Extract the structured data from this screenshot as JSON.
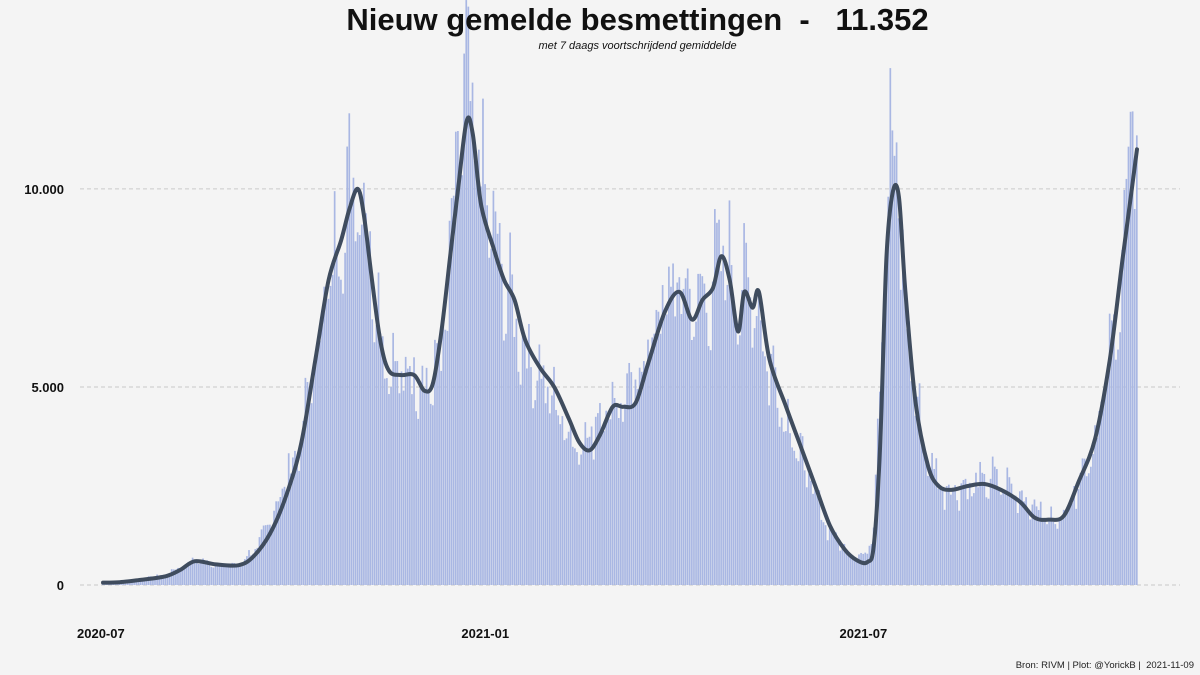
{
  "chart_data": {
    "type": "bar",
    "title": "Nieuw gemelde besmettingen  -   11.352",
    "subtitle": "met 7 daags voortschrijdend gemiddelde",
    "caption": "Bron: RIVM | Plot: @YorickB |  2021-11-09",
    "xlabel": "",
    "ylabel": "",
    "x_start": "2020-07-02",
    "x_end": "2021-11-09",
    "xlim": [
      "2020-06-21",
      "2021-11-20"
    ],
    "ylim": [
      0,
      12800
    ],
    "yticks": [
      {
        "value": 0,
        "label": "0"
      },
      {
        "value": 5000,
        "label": "5.000"
      },
      {
        "value": 10000,
        "label": "10.000"
      }
    ],
    "xticks": [
      {
        "value": "2020-07-01",
        "label": "2020-07"
      },
      {
        "value": "2021-01-01",
        "label": "2021-01"
      },
      {
        "value": "2021-07-01",
        "label": "2021-07"
      }
    ],
    "grid": "horizontal-dashed",
    "colors": {
      "bars": "#a9b7e3",
      "average_line": "#3f4c5e",
      "background": "#f4f4f4"
    },
    "series": [
      {
        "type": "bar",
        "name": "",
        "description": "daily reported infections (estimated, anchor points; daily values interpolated with noise)",
        "anchors": [
          [
            "2020-07-02",
            60
          ],
          [
            "2020-07-15",
            120
          ],
          [
            "2020-08-01",
            250
          ],
          [
            "2020-08-15",
            620
          ],
          [
            "2020-08-25",
            520
          ],
          [
            "2020-09-05",
            500
          ],
          [
            "2020-09-15",
            1000
          ],
          [
            "2020-09-25",
            2200
          ],
          [
            "2020-10-05",
            3600
          ],
          [
            "2020-10-12",
            5800
          ],
          [
            "2020-10-20",
            7900
          ],
          [
            "2020-10-28",
            9700
          ],
          [
            "2020-11-01",
            10100
          ],
          [
            "2020-11-05",
            9200
          ],
          [
            "2020-11-10",
            7100
          ],
          [
            "2020-11-15",
            5600
          ],
          [
            "2020-11-20",
            5100
          ],
          [
            "2020-11-30",
            5300
          ],
          [
            "2020-12-07",
            5000
          ],
          [
            "2020-12-12",
            6000
          ],
          [
            "2020-12-16",
            8300
          ],
          [
            "2020-12-20",
            11200
          ],
          [
            "2020-12-23",
            12200
          ],
          [
            "2020-12-27",
            11000
          ],
          [
            "2021-01-02",
            9300
          ],
          [
            "2021-01-10",
            7500
          ],
          [
            "2021-01-20",
            5800
          ],
          [
            "2021-01-28",
            5100
          ],
          [
            "2021-02-05",
            4300
          ],
          [
            "2021-02-12",
            3600
          ],
          [
            "2021-02-18",
            3500
          ],
          [
            "2021-02-25",
            4300
          ],
          [
            "2021-03-05",
            4600
          ],
          [
            "2021-03-12",
            4600
          ],
          [
            "2021-03-20",
            5900
          ],
          [
            "2021-03-28",
            7000
          ],
          [
            "2021-04-05",
            7400
          ],
          [
            "2021-04-12",
            6800
          ],
          [
            "2021-04-20",
            7400
          ],
          [
            "2021-04-25",
            8300
          ],
          [
            "2021-04-30",
            7500
          ],
          [
            "2021-05-05",
            7200
          ],
          [
            "2021-05-10",
            7300
          ],
          [
            "2021-05-15",
            5800
          ],
          [
            "2021-05-25",
            4200
          ],
          [
            "2021-06-05",
            2600
          ],
          [
            "2021-06-15",
            1300
          ],
          [
            "2021-06-25",
            750
          ],
          [
            "2021-07-02",
            700
          ],
          [
            "2021-07-06",
            1500
          ],
          [
            "2021-07-10",
            6500
          ],
          [
            "2021-07-14",
            10700
          ],
          [
            "2021-07-17",
            10200
          ],
          [
            "2021-07-22",
            6300
          ],
          [
            "2021-07-30",
            3400
          ],
          [
            "2021-08-08",
            2400
          ],
          [
            "2021-08-20",
            2400
          ],
          [
            "2021-09-01",
            2600
          ],
          [
            "2021-09-10",
            2400
          ],
          [
            "2021-09-20",
            2000
          ],
          [
            "2021-09-28",
            1600
          ],
          [
            "2021-10-05",
            1700
          ],
          [
            "2021-10-12",
            2600
          ],
          [
            "2021-10-20",
            3600
          ],
          [
            "2021-10-28",
            5800
          ],
          [
            "2021-11-03",
            8300
          ],
          [
            "2021-11-07",
            11500
          ],
          [
            "2021-11-09",
            11352
          ]
        ]
      },
      {
        "type": "line",
        "name": "",
        "description": "7-day moving average (estimated anchor points)",
        "points": [
          [
            "2020-07-02",
            60
          ],
          [
            "2020-07-10",
            70
          ],
          [
            "2020-07-20",
            130
          ],
          [
            "2020-08-01",
            220
          ],
          [
            "2020-08-08",
            380
          ],
          [
            "2020-08-15",
            600
          ],
          [
            "2020-08-25",
            520
          ],
          [
            "2020-09-05",
            500
          ],
          [
            "2020-09-12",
            720
          ],
          [
            "2020-09-20",
            1300
          ],
          [
            "2020-09-28",
            2300
          ],
          [
            "2020-10-05",
            3600
          ],
          [
            "2020-10-12",
            5800
          ],
          [
            "2020-10-18",
            7700
          ],
          [
            "2020-10-24",
            8700
          ],
          [
            "2020-10-28",
            9500
          ],
          [
            "2020-11-01",
            10000
          ],
          [
            "2020-11-04",
            9300
          ],
          [
            "2020-11-08",
            7600
          ],
          [
            "2020-11-12",
            6100
          ],
          [
            "2020-11-16",
            5400
          ],
          [
            "2020-11-22",
            5300
          ],
          [
            "2020-11-28",
            5300
          ],
          [
            "2020-12-03",
            4900
          ],
          [
            "2020-12-07",
            5100
          ],
          [
            "2020-12-11",
            6400
          ],
          [
            "2020-12-15",
            8200
          ],
          [
            "2020-12-19",
            10000
          ],
          [
            "2020-12-23",
            11700
          ],
          [
            "2020-12-26",
            11400
          ],
          [
            "2020-12-30",
            9600
          ],
          [
            "2021-01-05",
            8500
          ],
          [
            "2021-01-10",
            7700
          ],
          [
            "2021-01-15",
            7200
          ],
          [
            "2021-01-20",
            6200
          ],
          [
            "2021-01-27",
            5500
          ],
          [
            "2021-02-03",
            5000
          ],
          [
            "2021-02-10",
            4200
          ],
          [
            "2021-02-15",
            3600
          ],
          [
            "2021-02-20",
            3400
          ],
          [
            "2021-02-25",
            3800
          ],
          [
            "2021-03-03",
            4500
          ],
          [
            "2021-03-08",
            4500
          ],
          [
            "2021-03-14",
            4600
          ],
          [
            "2021-03-20",
            5600
          ],
          [
            "2021-03-28",
            6900
          ],
          [
            "2021-04-04",
            7400
          ],
          [
            "2021-04-10",
            6700
          ],
          [
            "2021-04-15",
            7200
          ],
          [
            "2021-04-20",
            7500
          ],
          [
            "2021-04-24",
            8300
          ],
          [
            "2021-04-28",
            7700
          ],
          [
            "2021-05-02",
            6400
          ],
          [
            "2021-05-05",
            7400
          ],
          [
            "2021-05-09",
            7000
          ],
          [
            "2021-05-12",
            7400
          ],
          [
            "2021-05-17",
            5700
          ],
          [
            "2021-05-25",
            4500
          ],
          [
            "2021-06-01",
            3500
          ],
          [
            "2021-06-08",
            2500
          ],
          [
            "2021-06-15",
            1500
          ],
          [
            "2021-06-22",
            900
          ],
          [
            "2021-06-28",
            620
          ],
          [
            "2021-07-03",
            580
          ],
          [
            "2021-07-06",
            1000
          ],
          [
            "2021-07-09",
            3500
          ],
          [
            "2021-07-12",
            8200
          ],
          [
            "2021-07-15",
            9900
          ],
          [
            "2021-07-18",
            9800
          ],
          [
            "2021-07-21",
            7500
          ],
          [
            "2021-07-26",
            4600
          ],
          [
            "2021-08-01",
            3000
          ],
          [
            "2021-08-06",
            2500
          ],
          [
            "2021-08-12",
            2400
          ],
          [
            "2021-08-20",
            2500
          ],
          [
            "2021-08-28",
            2550
          ],
          [
            "2021-09-05",
            2400
          ],
          [
            "2021-09-14",
            2100
          ],
          [
            "2021-09-21",
            1700
          ],
          [
            "2021-09-28",
            1650
          ],
          [
            "2021-10-05",
            1750
          ],
          [
            "2021-10-12",
            2600
          ],
          [
            "2021-10-20",
            3700
          ],
          [
            "2021-10-27",
            5700
          ],
          [
            "2021-11-02",
            8200
          ],
          [
            "2021-11-06",
            9800
          ],
          [
            "2021-11-09",
            11000
          ]
        ]
      }
    ]
  }
}
